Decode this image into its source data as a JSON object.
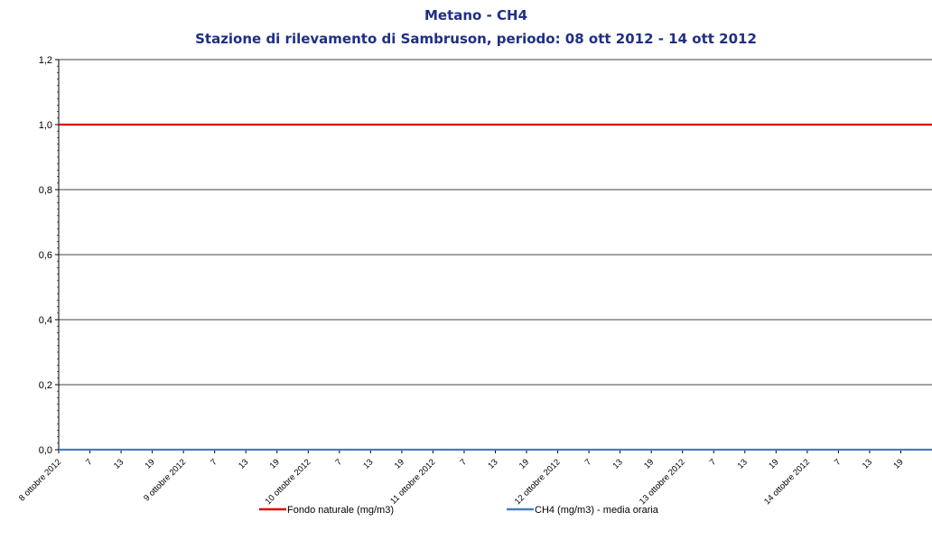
{
  "chart_data": {
    "type": "line",
    "title": "Metano - CH4",
    "subtitle": "Stazione di rilevamento di Sambruson, periodo: 08 ott 2012 - 14 ott 2012",
    "xlabel": "",
    "ylabel": "",
    "ylim": [
      0,
      1.2
    ],
    "yticks": [
      "0,0",
      "0,2",
      "0,4",
      "0,6",
      "0,8",
      "1,0",
      "1,2"
    ],
    "y_tick_values": [
      0,
      0.2,
      0.4,
      0.6,
      0.8,
      1.0,
      1.2
    ],
    "x_tick_labels": [
      "8 ottobre 2012",
      "7",
      "13",
      "19",
      "9 ottobre 2012",
      "7",
      "13",
      "19",
      "10 ottobre 2012",
      "7",
      "13",
      "19",
      "11 ottobre 2012",
      "7",
      "13",
      "19",
      "12 ottobre 2012",
      "7",
      "13",
      "19",
      "13 ottobre 2012",
      "7",
      "13",
      "19",
      "14 ottobre 2012",
      "7",
      "13",
      "19"
    ],
    "xlim": [
      "2012-10-08 00:00",
      "2012-10-15 00:00"
    ],
    "grid": true,
    "legend_position": "bottom",
    "series": [
      {
        "name": "Fondo naturale  (mg/m3)",
        "color": "#e00000",
        "x": [
          "2012-10-08 00:00",
          "2012-10-15 00:00"
        ],
        "values": [
          1.0,
          1.0
        ]
      },
      {
        "name": "CH4 (mg/m3)  - media oraria",
        "color": "#4a7ebb",
        "x": [
          "2012-10-08 00:00",
          "2012-10-15 00:00"
        ],
        "values": [
          0.0,
          0.0
        ]
      }
    ]
  }
}
